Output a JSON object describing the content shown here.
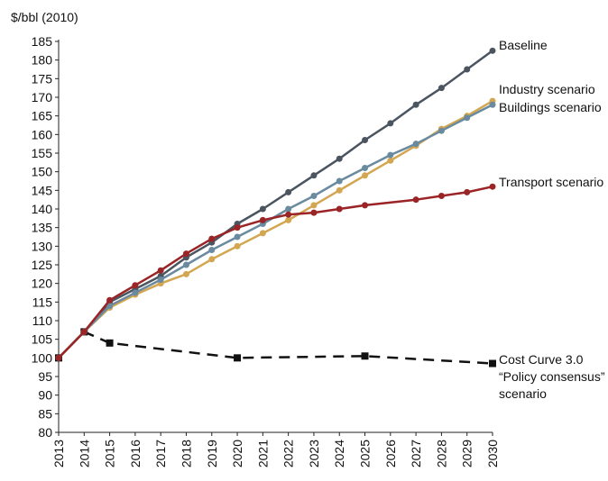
{
  "chart_data": {
    "type": "line",
    "title": "",
    "xlabel": "",
    "ylabel": "$/bbl (2010)",
    "x": [
      2013,
      2014,
      2015,
      2016,
      2017,
      2018,
      2019,
      2020,
      2021,
      2022,
      2023,
      2024,
      2025,
      2026,
      2027,
      2028,
      2029,
      2030
    ],
    "ylim": [
      80,
      185
    ],
    "y_ticks": [
      80,
      85,
      90,
      95,
      100,
      105,
      110,
      115,
      120,
      125,
      130,
      135,
      140,
      145,
      150,
      155,
      160,
      165,
      170,
      175,
      180,
      185
    ],
    "grid": false,
    "legend": "direct labels at right end of lines",
    "series": [
      {
        "name": "Baseline",
        "label_lines": [
          "Baseline"
        ],
        "color": "#4a5560",
        "dash": false,
        "marker": "circle",
        "points": [
          [
            2013,
            100
          ],
          [
            2014,
            107
          ],
          [
            2015,
            115
          ],
          [
            2016,
            118.5
          ],
          [
            2017,
            122
          ],
          [
            2018,
            127
          ],
          [
            2019,
            131
          ],
          [
            2020,
            136
          ],
          [
            2021,
            140
          ],
          [
            2022,
            144.5
          ],
          [
            2023,
            149
          ],
          [
            2024,
            153.5
          ],
          [
            2025,
            158.5
          ],
          [
            2026,
            163
          ],
          [
            2027,
            168
          ],
          [
            2028,
            172.5
          ],
          [
            2029,
            177.5
          ],
          [
            2030,
            182.5
          ]
        ]
      },
      {
        "name": "Industry scenario",
        "label_lines": [
          "Industry scenario"
        ],
        "color": "#d3a651",
        "dash": false,
        "marker": "circle",
        "points": [
          [
            2013,
            100
          ],
          [
            2014,
            107
          ],
          [
            2015,
            113.5
          ],
          [
            2016,
            117
          ],
          [
            2017,
            120
          ],
          [
            2018,
            122.5
          ],
          [
            2019,
            126.5
          ],
          [
            2020,
            130
          ],
          [
            2021,
            133.5
          ],
          [
            2022,
            137
          ],
          [
            2023,
            141
          ],
          [
            2024,
            145
          ],
          [
            2025,
            149
          ],
          [
            2026,
            153
          ],
          [
            2027,
            157
          ],
          [
            2028,
            161.5
          ],
          [
            2029,
            165
          ],
          [
            2030,
            169
          ]
        ]
      },
      {
        "name": "Buildings scenario",
        "label_lines": [
          "Buildings scenario"
        ],
        "color": "#6a8aa0",
        "dash": false,
        "marker": "circle",
        "points": [
          [
            2013,
            100
          ],
          [
            2014,
            107
          ],
          [
            2015,
            114
          ],
          [
            2016,
            117.5
          ],
          [
            2017,
            121
          ],
          [
            2018,
            125
          ],
          [
            2019,
            129
          ],
          [
            2020,
            132.5
          ],
          [
            2021,
            136
          ],
          [
            2022,
            140
          ],
          [
            2023,
            143.5
          ],
          [
            2024,
            147.5
          ],
          [
            2025,
            151
          ],
          [
            2026,
            154.5
          ],
          [
            2027,
            157.5
          ],
          [
            2028,
            161
          ],
          [
            2029,
            164.5
          ],
          [
            2030,
            168
          ]
        ]
      },
      {
        "name": "Transport scenario",
        "label_lines": [
          "Transport scenario"
        ],
        "color": "#9a2426",
        "dash": false,
        "marker": "circle",
        "points": [
          [
            2013,
            100
          ],
          [
            2014,
            107
          ],
          [
            2015,
            115.5
          ],
          [
            2016,
            119.5
          ],
          [
            2017,
            123.5
          ],
          [
            2018,
            128
          ],
          [
            2019,
            132
          ],
          [
            2020,
            135
          ],
          [
            2021,
            137
          ],
          [
            2022,
            138.5
          ],
          [
            2023,
            139
          ],
          [
            2024,
            140
          ],
          [
            2025,
            141
          ],
          [
            2027,
            142.5
          ],
          [
            2028,
            143.5
          ],
          [
            2029,
            144.5
          ],
          [
            2030,
            146
          ]
        ]
      },
      {
        "name": "Cost Curve 3.0 “Policy consensus” scenario",
        "label_lines": [
          "Cost Curve 3.0",
          "“Policy consensus”",
          "scenario"
        ],
        "color": "#111111",
        "dash": true,
        "marker": "square",
        "points": [
          [
            2013,
            100
          ],
          [
            2014,
            107
          ],
          [
            2015,
            104
          ],
          [
            2020,
            100
          ],
          [
            2025,
            100.5
          ],
          [
            2030,
            98.5
          ]
        ]
      }
    ]
  }
}
